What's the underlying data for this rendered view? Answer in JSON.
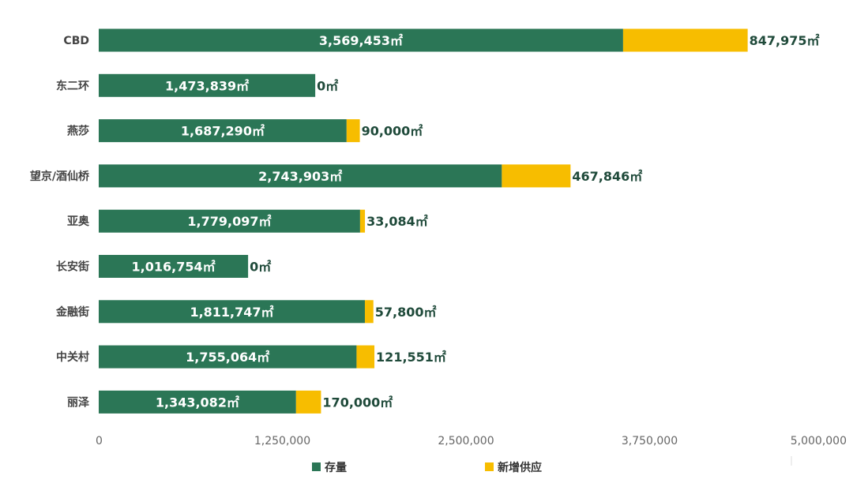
{
  "chart_data": {
    "type": "bar",
    "orientation": "horizontal",
    "stacked": true,
    "categories": [
      "CBD",
      "东二环",
      "燕莎",
      "望京/酒仙桥",
      "亚奥",
      "长安街",
      "金融街",
      "中关村",
      "丽泽"
    ],
    "series": [
      {
        "name": "存量",
        "color": "#2b7656",
        "values": [
          3569453,
          1473839,
          1687290,
          2743903,
          1779097,
          1016754,
          1811747,
          1755064,
          1343082
        ],
        "labels": [
          "3,569,453㎡",
          "1,473,839㎡",
          "1,687,290㎡",
          "2,743,903㎡",
          "1,779,097㎡",
          "1,016,754㎡",
          "1,811,747㎡",
          "1,755,064㎡",
          "1,343,082㎡"
        ]
      },
      {
        "name": "新增供应",
        "color": "#f7bd00",
        "values": [
          847975,
          0,
          90000,
          467846,
          33084,
          0,
          57800,
          121551,
          170000
        ],
        "labels": [
          "847,975㎡",
          "0㎡",
          "90,000㎡",
          "467,846㎡",
          "33,084㎡",
          "0㎡",
          "57,800㎡",
          "121,551㎡",
          "170,000㎡"
        ]
      }
    ],
    "xlim": [
      0,
      5000000
    ],
    "xticks": [
      0,
      1250000,
      2500000,
      3750000,
      5000000
    ],
    "xtick_labels": [
      "0",
      "1,250,000",
      "2,500,000",
      "3,750,000",
      "5,000,000"
    ],
    "grid": false,
    "legend_position": "bottom"
  }
}
